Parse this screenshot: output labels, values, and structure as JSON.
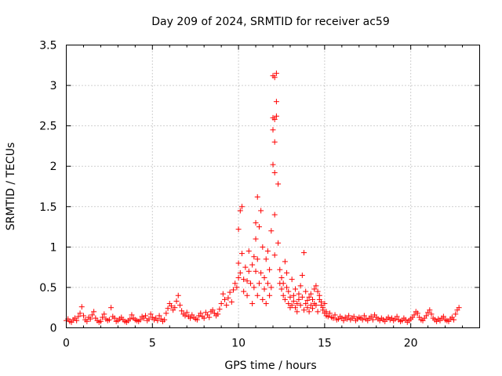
{
  "chart_data": {
    "type": "scatter",
    "title": "Day 209 of 2024, SRMTID for receiver ac59",
    "xlabel": "GPS time / hours",
    "ylabel": "SRMTID / TECUs",
    "xlim": [
      0,
      24
    ],
    "ylim": [
      0,
      3.5
    ],
    "xticks": [
      0,
      5,
      10,
      15,
      20
    ],
    "xtick_labels": [
      "0",
      "5",
      "10",
      "15",
      "20"
    ],
    "yticks": [
      0,
      0.5,
      1,
      1.5,
      2,
      2.5,
      3,
      3.5
    ],
    "ytick_labels": [
      "0",
      "0.5",
      "1",
      "1.5",
      "2",
      "2.5",
      "3",
      "3.5"
    ],
    "grid": true,
    "marker": "+",
    "marker_color": "#ff0000",
    "series": [
      {
        "name": "SRMTID",
        "description": "approximate sampled points read from the plot",
        "x": [
          0.0,
          0.1,
          0.2,
          0.3,
          0.4,
          0.5,
          0.6,
          0.7,
          0.8,
          0.9,
          1.0,
          1.1,
          1.2,
          1.3,
          1.4,
          1.5,
          1.6,
          1.7,
          1.8,
          1.9,
          2.0,
          2.1,
          2.2,
          2.3,
          2.4,
          2.5,
          2.6,
          2.7,
          2.8,
          2.9,
          3.0,
          3.1,
          3.2,
          3.3,
          3.4,
          3.5,
          3.6,
          3.7,
          3.8,
          3.9,
          4.0,
          4.1,
          4.2,
          4.3,
          4.4,
          4.5,
          4.6,
          4.7,
          4.8,
          4.9,
          5.0,
          5.1,
          5.2,
          5.3,
          5.4,
          5.5,
          5.6,
          5.7,
          5.8,
          5.9,
          6.0,
          6.1,
          6.2,
          6.3,
          6.4,
          6.5,
          6.6,
          6.7,
          6.8,
          6.9,
          7.0,
          7.1,
          7.2,
          7.3,
          7.4,
          7.5,
          7.6,
          7.7,
          7.8,
          7.9,
          8.0,
          8.1,
          8.2,
          8.3,
          8.4,
          8.5,
          8.6,
          8.7,
          8.8,
          8.9,
          9.0,
          9.1,
          9.2,
          9.3,
          9.4,
          9.5,
          9.6,
          9.7,
          9.8,
          9.9,
          10.0,
          10.0,
          10.0,
          10.1,
          10.1,
          10.2,
          10.2,
          10.3,
          10.3,
          10.4,
          10.5,
          10.5,
          10.6,
          10.6,
          10.7,
          10.8,
          10.8,
          10.9,
          10.9,
          11.0,
          11.0,
          11.0,
          11.1,
          11.1,
          11.1,
          11.2,
          11.2,
          11.3,
          11.3,
          11.4,
          11.4,
          11.5,
          11.5,
          11.6,
          11.6,
          11.7,
          11.7,
          11.8,
          11.8,
          11.9,
          11.9,
          12.0,
          12.0,
          12.0,
          12.0,
          12.1,
          12.1,
          12.1,
          12.1,
          12.1,
          12.1,
          12.2,
          12.2,
          12.2,
          12.3,
          12.3,
          12.4,
          12.4,
          12.5,
          12.5,
          12.6,
          12.6,
          12.7,
          12.7,
          12.8,
          12.8,
          12.9,
          12.9,
          13.0,
          13.0,
          13.1,
          13.1,
          13.2,
          13.2,
          13.3,
          13.3,
          13.4,
          13.4,
          13.5,
          13.5,
          13.6,
          13.6,
          13.7,
          13.7,
          13.8,
          13.8,
          13.9,
          13.9,
          14.0,
          14.0,
          14.1,
          14.1,
          14.2,
          14.2,
          14.3,
          14.3,
          14.4,
          14.4,
          14.5,
          14.5,
          14.6,
          14.6,
          14.7,
          14.7,
          14.8,
          14.8,
          14.9,
          14.9,
          15.0,
          15.0,
          15.1,
          15.1,
          15.2,
          15.3,
          15.4,
          15.5,
          15.6,
          15.7,
          15.8,
          15.9,
          16.0,
          16.1,
          16.2,
          16.3,
          16.4,
          16.5,
          16.6,
          16.7,
          16.8,
          16.9,
          17.0,
          17.1,
          17.2,
          17.3,
          17.4,
          17.5,
          17.6,
          17.7,
          17.8,
          17.9,
          18.0,
          18.1,
          18.2,
          18.3,
          18.4,
          18.5,
          18.6,
          18.7,
          18.8,
          18.9,
          19.0,
          19.1,
          19.2,
          19.3,
          19.4,
          19.5,
          19.6,
          19.7,
          19.8,
          19.9,
          20.0,
          20.1,
          20.2,
          20.3,
          20.4,
          20.5,
          20.6,
          20.7,
          20.8,
          20.9,
          21.0,
          21.1,
          21.2,
          21.3,
          21.4,
          21.5,
          21.6,
          21.7,
          21.8,
          21.9,
          22.0,
          22.1,
          22.2,
          22.3,
          22.4,
          22.5,
          22.6,
          22.7,
          22.8
        ],
        "y": [
          0.09,
          0.11,
          0.08,
          0.07,
          0.1,
          0.12,
          0.09,
          0.14,
          0.18,
          0.26,
          0.15,
          0.1,
          0.08,
          0.13,
          0.11,
          0.16,
          0.2,
          0.12,
          0.09,
          0.07,
          0.08,
          0.13,
          0.17,
          0.11,
          0.09,
          0.1,
          0.25,
          0.14,
          0.12,
          0.08,
          0.09,
          0.11,
          0.13,
          0.1,
          0.08,
          0.07,
          0.09,
          0.11,
          0.16,
          0.12,
          0.1,
          0.09,
          0.08,
          0.1,
          0.14,
          0.12,
          0.15,
          0.09,
          0.11,
          0.17,
          0.13,
          0.1,
          0.12,
          0.09,
          0.15,
          0.11,
          0.08,
          0.1,
          0.18,
          0.24,
          0.3,
          0.27,
          0.22,
          0.25,
          0.33,
          0.4,
          0.28,
          0.21,
          0.17,
          0.15,
          0.19,
          0.14,
          0.12,
          0.16,
          0.13,
          0.11,
          0.1,
          0.15,
          0.18,
          0.14,
          0.12,
          0.19,
          0.16,
          0.13,
          0.2,
          0.22,
          0.18,
          0.15,
          0.17,
          0.23,
          0.3,
          0.42,
          0.35,
          0.28,
          0.37,
          0.44,
          0.32,
          0.47,
          0.55,
          0.5,
          0.62,
          0.8,
          1.22,
          0.68,
          1.45,
          0.92,
          1.5,
          0.6,
          0.45,
          0.75,
          0.58,
          0.4,
          0.7,
          0.95,
          0.55,
          0.78,
          0.3,
          0.5,
          0.88,
          0.7,
          1.3,
          1.1,
          0.85,
          1.62,
          0.4,
          1.25,
          0.55,
          1.45,
          0.68,
          0.35,
          1.0,
          0.62,
          0.48,
          0.3,
          0.85,
          0.55,
          0.95,
          0.4,
          0.72,
          0.5,
          1.2,
          3.12,
          2.6,
          2.02,
          2.45,
          3.1,
          2.58,
          2.3,
          1.92,
          1.4,
          0.9,
          3.15,
          2.8,
          2.62,
          1.78,
          1.05,
          0.55,
          0.72,
          0.48,
          0.62,
          0.4,
          0.55,
          0.35,
          0.82,
          0.5,
          0.68,
          0.3,
          0.45,
          0.25,
          0.38,
          0.6,
          0.28,
          0.4,
          0.33,
          0.25,
          0.48,
          0.3,
          0.2,
          0.42,
          0.35,
          0.28,
          0.52,
          0.65,
          0.38,
          0.22,
          0.93,
          0.3,
          0.45,
          0.25,
          0.34,
          0.2,
          0.38,
          0.28,
          0.42,
          0.35,
          0.24,
          0.48,
          0.3,
          0.52,
          0.28,
          0.45,
          0.2,
          0.35,
          0.4,
          0.28,
          0.32,
          0.25,
          0.22,
          0.3,
          0.18,
          0.2,
          0.15,
          0.14,
          0.18,
          0.13,
          0.12,
          0.16,
          0.1,
          0.11,
          0.14,
          0.12,
          0.09,
          0.13,
          0.11,
          0.15,
          0.1,
          0.12,
          0.14,
          0.09,
          0.11,
          0.13,
          0.12,
          0.1,
          0.15,
          0.11,
          0.09,
          0.12,
          0.14,
          0.1,
          0.16,
          0.13,
          0.11,
          0.09,
          0.12,
          0.1,
          0.08,
          0.11,
          0.13,
          0.1,
          0.12,
          0.09,
          0.11,
          0.14,
          0.1,
          0.08,
          0.09,
          0.12,
          0.1,
          0.07,
          0.09,
          0.11,
          0.13,
          0.16,
          0.2,
          0.18,
          0.13,
          0.1,
          0.09,
          0.12,
          0.15,
          0.19,
          0.22,
          0.17,
          0.12,
          0.1,
          0.08,
          0.11,
          0.09,
          0.12,
          0.14,
          0.1,
          0.09,
          0.08,
          0.11,
          0.13,
          0.1,
          0.17,
          0.22,
          0.25
        ]
      }
    ]
  }
}
